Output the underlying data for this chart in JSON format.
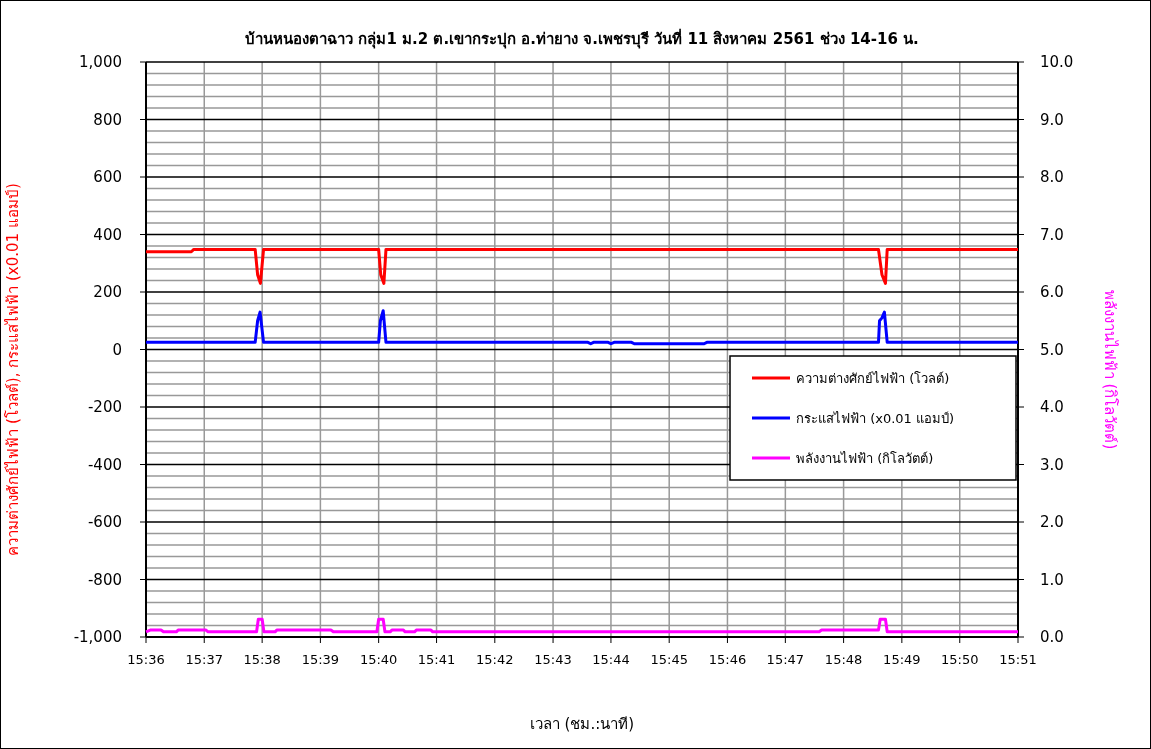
{
  "chart_data": {
    "type": "line",
    "title": "บ้านหนองตาฉาว กลุ่ม1 ม.2 ต.เขากระปุก อ.ท่ายาง จ.เพชรบุรี วันที่ 11 สิงหาคม 2561 ช่วง 14-16 น.",
    "xlabel": "เวลา (ชม.:นาที)",
    "ylabel": "ความต่างศักย์ไฟฟ้า (โวลต์), กระแสไฟฟ้า (x0.01 แอมป์)",
    "y2label": "พลังงานไฟฟ้า (กิโลวัตต์)",
    "xlim": [
      15.6,
      15.85
    ],
    "xticks": [
      {
        "value": 15.6,
        "label": "15:36"
      },
      {
        "value": 15.6167,
        "label": "15:37"
      },
      {
        "value": 15.6333,
        "label": "15:38"
      },
      {
        "value": 15.65,
        "label": "15:39"
      },
      {
        "value": 15.6667,
        "label": "15:40"
      },
      {
        "value": 15.6833,
        "label": "15:41"
      },
      {
        "value": 15.7,
        "label": "15:42"
      },
      {
        "value": 15.7167,
        "label": "15:43"
      },
      {
        "value": 15.7333,
        "label": "15:44"
      },
      {
        "value": 15.75,
        "label": "15:45"
      },
      {
        "value": 15.7667,
        "label": "15:46"
      },
      {
        "value": 15.7833,
        "label": "15:47"
      },
      {
        "value": 15.8,
        "label": "15:48"
      },
      {
        "value": 15.8167,
        "label": "15:49"
      },
      {
        "value": 15.8333,
        "label": "15:50"
      },
      {
        "value": 15.85,
        "label": "15:51"
      }
    ],
    "ylim": [
      -1000,
      1000
    ],
    "yticks": [
      {
        "value": -1000,
        "label": "-1,000"
      },
      -800,
      -600,
      -400,
      -200,
      0,
      200,
      400,
      600,
      800,
      {
        "value": 1000,
        "label": "1,000"
      }
    ],
    "y2lim": [
      0,
      10
    ],
    "y2ticks": [
      {
        "value": 0,
        "label": "0.0"
      },
      {
        "value": 1,
        "label": "1.0"
      },
      {
        "value": 2,
        "label": "2.0"
      },
      {
        "value": 3,
        "label": "3.0"
      },
      {
        "value": 4,
        "label": "4.0"
      },
      {
        "value": 5,
        "label": "5.0"
      },
      {
        "value": 6,
        "label": "6.0"
      },
      {
        "value": 7,
        "label": "7.0"
      },
      {
        "value": 8,
        "label": "8.0"
      },
      {
        "value": 9,
        "label": "9.0"
      },
      {
        "value": 10,
        "label": "10.0"
      }
    ],
    "grid": true,
    "legend": "right",
    "marker": "none",
    "line_style": "solid",
    "series": [
      {
        "name": "ความต่างศักย์ไฟฟ้า (โวลต์)",
        "color": "#ff0000",
        "x": [
          15.6,
          15.613,
          15.6137,
          15.6313,
          15.632,
          15.6328,
          15.6337,
          15.6667,
          15.6673,
          15.6682,
          15.6688,
          15.81,
          15.811,
          15.812,
          15.8125,
          15.85
        ],
        "values": [
          340,
          340,
          348,
          348,
          260,
          230,
          348,
          348,
          260,
          230,
          348,
          348,
          260,
          230,
          348,
          348
        ]
      },
      {
        "name": "กระแสไฟฟ้า (x0.01 แอมป์)",
        "color": "#0000ff",
        "x": [
          15.6,
          15.6313,
          15.632,
          15.6327,
          15.6337,
          15.6667,
          15.6672,
          15.668,
          15.6688,
          15.7267,
          15.7275,
          15.7283,
          15.7325,
          15.7333,
          15.7342,
          15.7392,
          15.74,
          15.76,
          15.7608,
          15.81,
          15.8103,
          15.811,
          15.8117,
          15.8125,
          15.85
        ],
        "values": [
          25,
          25,
          100,
          130,
          25,
          25,
          100,
          135,
          25,
          25,
          20,
          25,
          25,
          20,
          25,
          25,
          20,
          20,
          25,
          25,
          100,
          110,
          130,
          25,
          25
        ]
      },
      {
        "name": "พลังงานไฟฟ้า (กิโลวัตต์)",
        "color": "#ff00ff",
        "axis": "y2",
        "x": [
          15.6,
          15.6012,
          15.6043,
          15.605,
          15.6087,
          15.6092,
          15.6172,
          15.6178,
          15.6317,
          15.6322,
          15.6333,
          15.6338,
          15.637,
          15.6375,
          15.653,
          15.6537,
          15.6662,
          15.6667,
          15.668,
          15.6685,
          15.67,
          15.6705,
          15.6738,
          15.6743,
          15.677,
          15.6775,
          15.6817,
          15.6822,
          15.793,
          15.7937,
          15.81,
          15.8105,
          15.812,
          15.8125,
          15.85
        ],
        "values": [
          0.09,
          0.12,
          0.12,
          0.09,
          0.09,
          0.12,
          0.12,
          0.09,
          0.09,
          0.31,
          0.31,
          0.09,
          0.09,
          0.12,
          0.12,
          0.09,
          0.09,
          0.31,
          0.31,
          0.09,
          0.09,
          0.12,
          0.12,
          0.09,
          0.09,
          0.12,
          0.12,
          0.09,
          0.09,
          0.12,
          0.12,
          0.31,
          0.31,
          0.09,
          0.09
        ]
      }
    ]
  }
}
